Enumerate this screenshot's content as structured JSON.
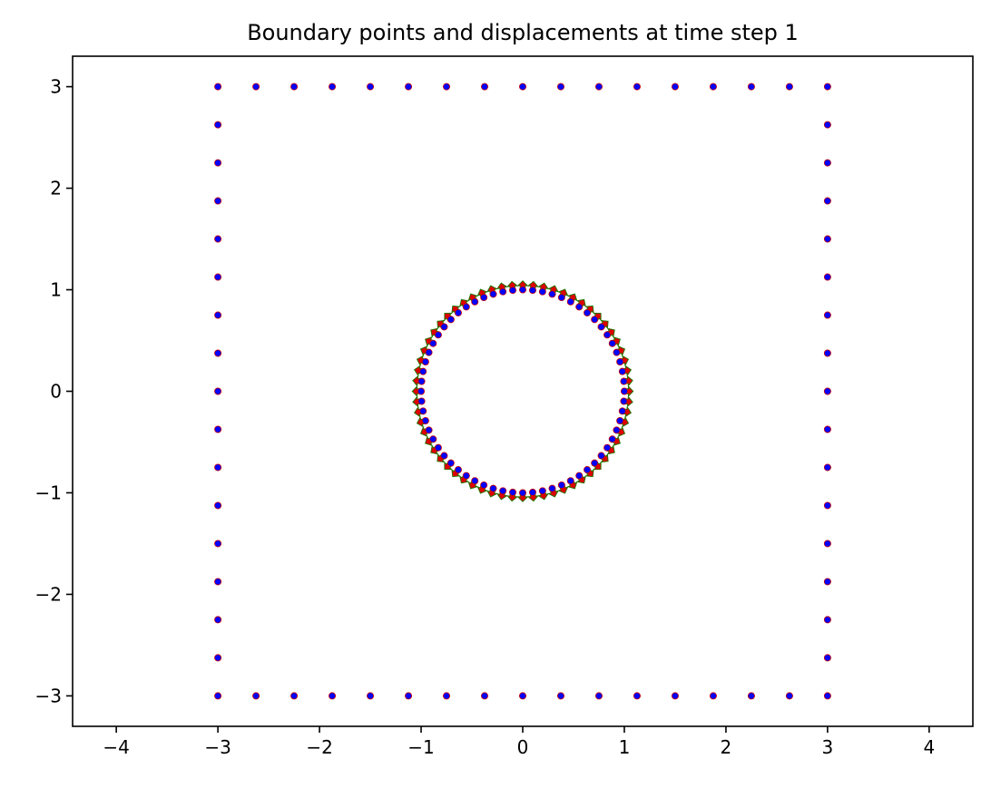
{
  "chart_data": {
    "type": "scatter",
    "title": "Boundary points and displacements at time step 1",
    "xlabel": "",
    "ylabel": "",
    "xlim": [
      -4.43,
      4.43
    ],
    "ylim": [
      -3.3,
      3.3
    ],
    "x_ticks": [
      -4,
      -3,
      -2,
      -1,
      0,
      1,
      2,
      3,
      4
    ],
    "y_ticks": [
      -3,
      -2,
      -1,
      0,
      1,
      2,
      3
    ],
    "x_tick_labels": [
      "−4",
      "−3",
      "−2",
      "−1",
      "0",
      "1",
      "2",
      "3",
      "4"
    ],
    "y_tick_labels": [
      "−3",
      "−2",
      "−1",
      "0",
      "1",
      "2",
      "3"
    ],
    "grid": false,
    "legend": "none",
    "outer_boundary": {
      "shape": "square",
      "xmin": -3,
      "xmax": 3,
      "ymin": -3,
      "ymax": 3,
      "spacing": 0.375,
      "points_per_side": 17
    },
    "inner_boundary": {
      "shape": "circle",
      "center": [
        0,
        0
      ],
      "radius": 1,
      "num_points": 64
    },
    "displacement": {
      "kind": "radial",
      "magnitude": 0.07
    },
    "colors": {
      "point_fill": "#0000ff",
      "point_edge": "#cc0000",
      "arrow_fill": "#e00000",
      "arrow_edge": "#1a7a00",
      "axes": "#000000"
    }
  }
}
